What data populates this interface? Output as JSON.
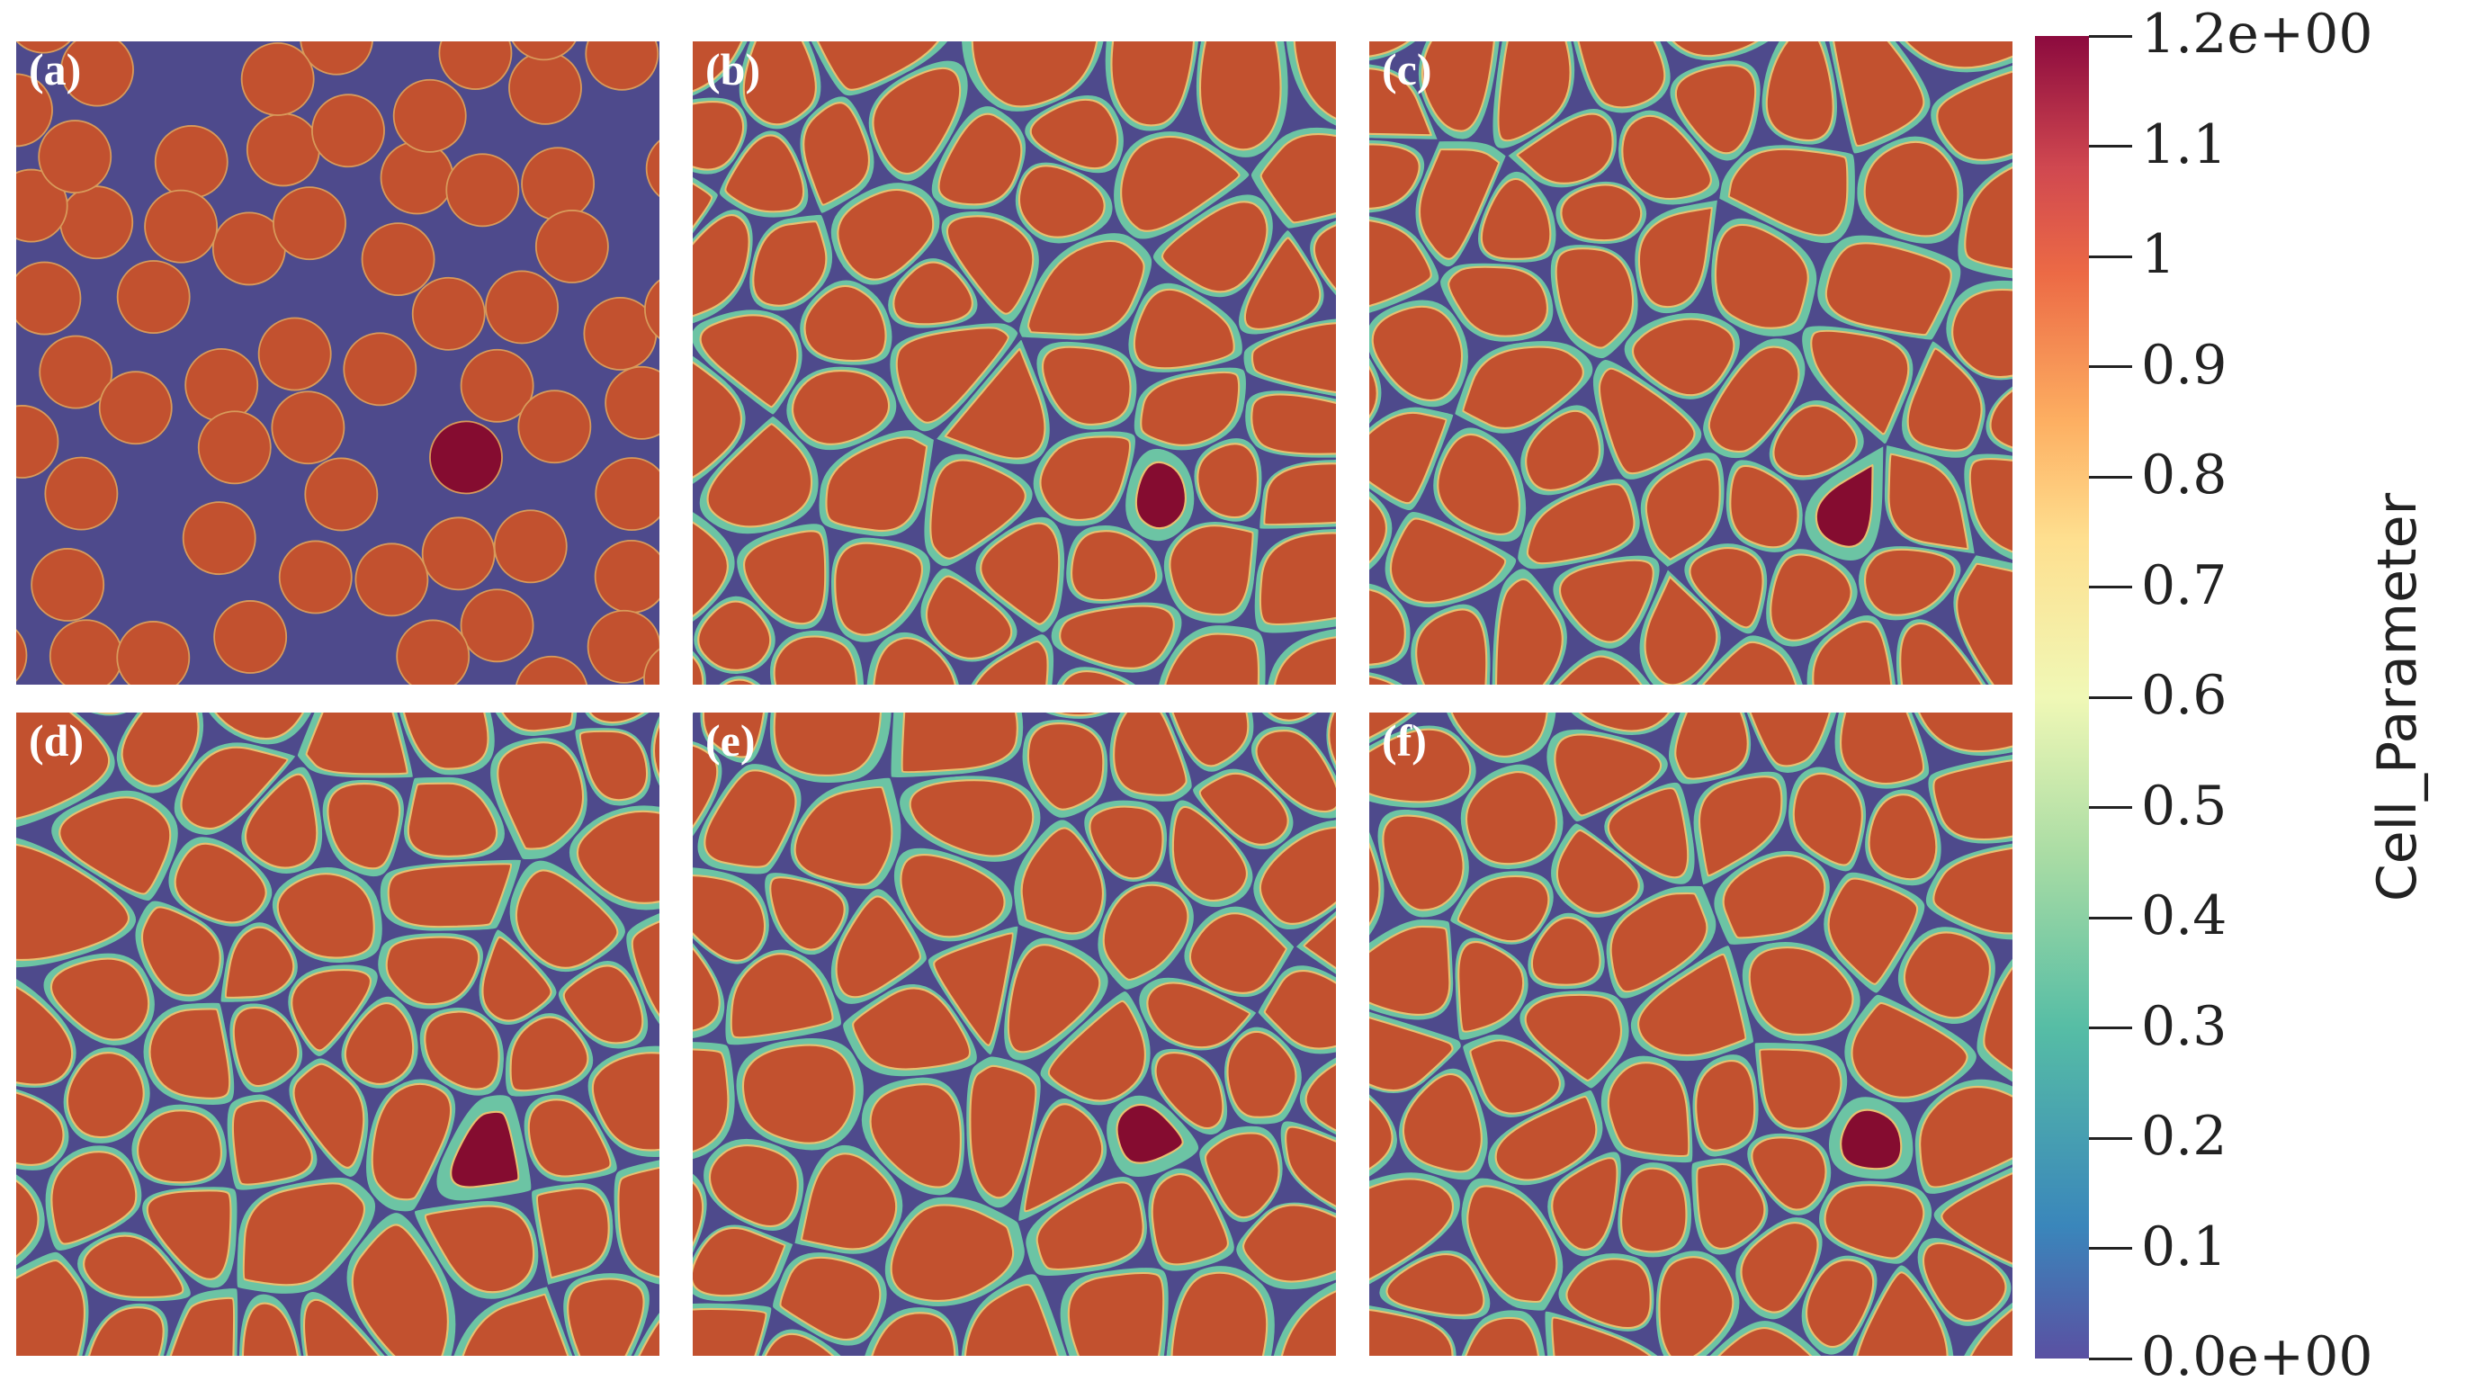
{
  "panels": [
    {
      "id": "a",
      "label": "(a)"
    },
    {
      "id": "b",
      "label": "(b)"
    },
    {
      "id": "c",
      "label": "(c)"
    },
    {
      "id": "d",
      "label": "(d)"
    },
    {
      "id": "e",
      "label": "(e)"
    },
    {
      "id": "f",
      "label": "(f)"
    }
  ],
  "colorbar": {
    "title": "Cell_Parameter",
    "min": 0.0,
    "max": 1.2,
    "ticks": [
      {
        "value": 1.2,
        "label": "1.2e+00"
      },
      {
        "value": 1.1,
        "label": "1.1"
      },
      {
        "value": 1.0,
        "label": "1"
      },
      {
        "value": 0.9,
        "label": "0.9"
      },
      {
        "value": 0.8,
        "label": "0.8"
      },
      {
        "value": 0.7,
        "label": "0.7"
      },
      {
        "value": 0.6,
        "label": "0.6"
      },
      {
        "value": 0.5,
        "label": "0.5"
      },
      {
        "value": 0.4,
        "label": "0.4"
      },
      {
        "value": 0.3,
        "label": "0.3"
      },
      {
        "value": 0.2,
        "label": "0.2"
      },
      {
        "value": 0.1,
        "label": "0.1"
      },
      {
        "value": 0.0,
        "label": "0.0e+00"
      }
    ]
  },
  "colors": {
    "background": "#4e4a8c",
    "cell": "#c2512f",
    "special_cell": "#850c30",
    "boundary": "#6cc4a4"
  }
}
